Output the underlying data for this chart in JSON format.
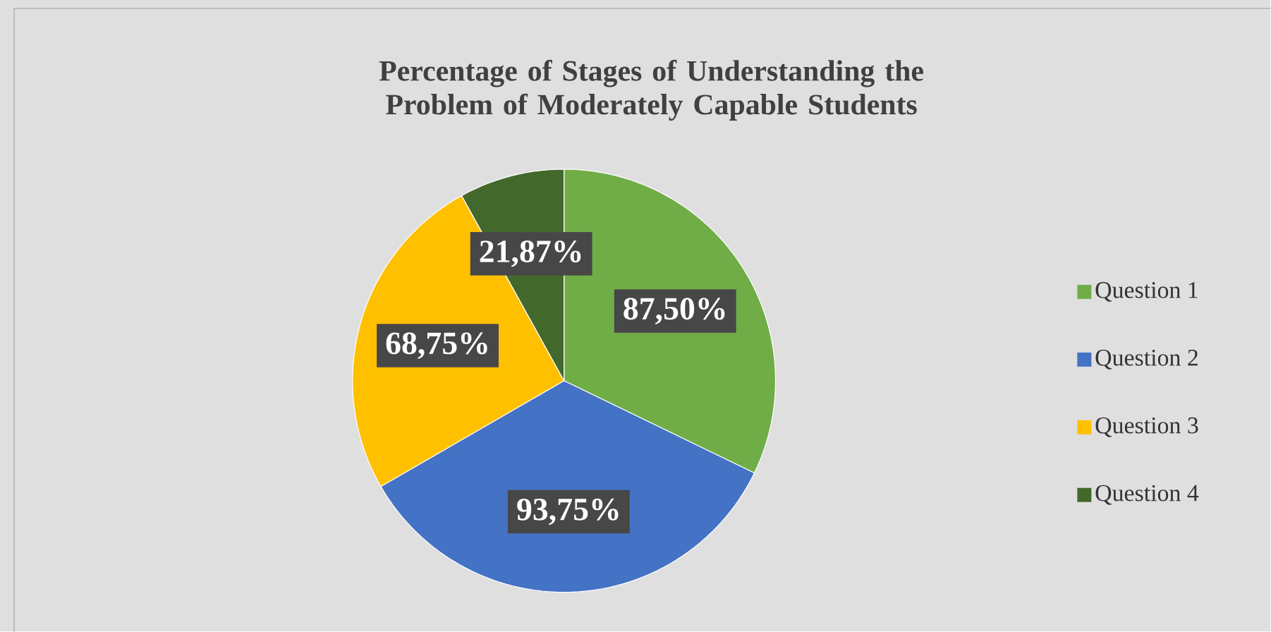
{
  "chart_data": {
    "type": "pie",
    "title": "Percentage of Stages of Understanding the Problem of Moderately Capable Students",
    "categories": [
      "Question 1",
      "Question 2",
      "Question 3",
      "Question 4"
    ],
    "values": [
      87.5,
      93.75,
      68.75,
      21.87
    ],
    "value_labels": [
      "87,50%",
      "93,75%",
      "68,75%",
      "21,87%"
    ],
    "colors": [
      "#70ad47",
      "#4472c4",
      "#ffc000",
      "#43682b"
    ],
    "legend": "right"
  }
}
